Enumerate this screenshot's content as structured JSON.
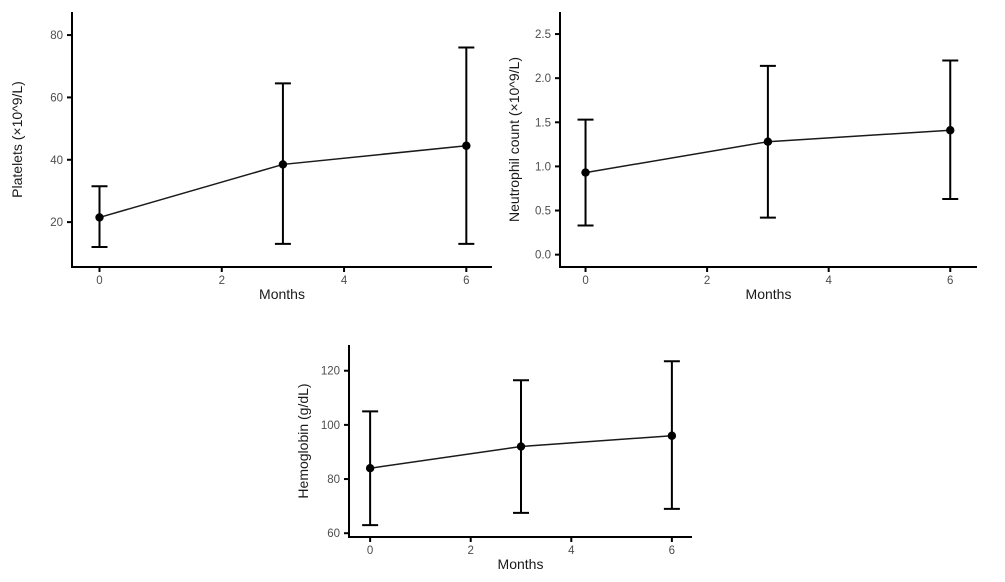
{
  "figure": {
    "background": "#ffffff",
    "colors": {
      "axis_line": "#000000",
      "series_line": "#1a1a1a",
      "point": "#000000",
      "error_bar": "#000000",
      "tick_label": "#4d4d4d",
      "axis_title": "#1a1a1a"
    }
  },
  "chart_data": [
    {
      "id": "platelets",
      "type": "line",
      "title": "",
      "xlabel": "Months",
      "ylabel": "Platelets (×10^9/L)",
      "x": [
        0,
        3,
        6
      ],
      "values": [
        21.5,
        38.5,
        44.5
      ],
      "error_low": [
        12,
        13,
        13
      ],
      "error_high": [
        31.5,
        64.5,
        76
      ],
      "xticks": [
        0,
        2,
        4,
        6
      ],
      "xtick_labels": [
        "0",
        "2",
        "4",
        "6"
      ],
      "yticks": [
        20,
        40,
        60,
        80
      ],
      "ytick_labels": [
        "20",
        "40",
        "60",
        "80"
      ],
      "xlim": [
        -0.45,
        6.42
      ],
      "ylim": [
        5.6,
        87.4
      ],
      "grid": false,
      "legend": "none"
    },
    {
      "id": "neutrophil",
      "type": "line",
      "title": "",
      "xlabel": "Months",
      "ylabel": "Neutrophil count (×10^9/L)",
      "x": [
        0,
        3,
        6
      ],
      "values": [
        0.93,
        1.28,
        1.41
      ],
      "error_low": [
        0.33,
        0.42,
        0.63
      ],
      "error_high": [
        1.53,
        2.14,
        2.2
      ],
      "xticks": [
        0,
        2,
        4,
        6
      ],
      "xtick_labels": [
        "0",
        "2",
        "4",
        "6"
      ],
      "yticks": [
        0.0,
        0.5,
        1.0,
        1.5,
        2.0,
        2.5
      ],
      "ytick_labels": [
        "0.0",
        "0.5",
        "1.0",
        "1.5",
        "2.0",
        "2.5"
      ],
      "xlim": [
        -0.42,
        6.44
      ],
      "ylim": [
        -0.14,
        2.75
      ],
      "grid": false,
      "legend": "none"
    },
    {
      "id": "hemoglobin",
      "type": "line",
      "title": "",
      "xlabel": "Months",
      "ylabel": "Hemoglobin (g/dL)",
      "x": [
        0,
        3,
        6
      ],
      "values": [
        84,
        92,
        96
      ],
      "error_low": [
        63,
        67.5,
        69
      ],
      "error_high": [
        105,
        116.5,
        123.5
      ],
      "xticks": [
        0,
        2,
        4,
        6
      ],
      "xtick_labels": [
        "0",
        "2",
        "4",
        "6"
      ],
      "yticks": [
        60,
        80,
        100,
        120
      ],
      "ytick_labels": [
        "60",
        "80",
        "100",
        "120"
      ],
      "xlim": [
        -0.42,
        6.4
      ],
      "ylim": [
        58.6,
        129.5
      ],
      "grid": false,
      "legend": "none"
    }
  ]
}
